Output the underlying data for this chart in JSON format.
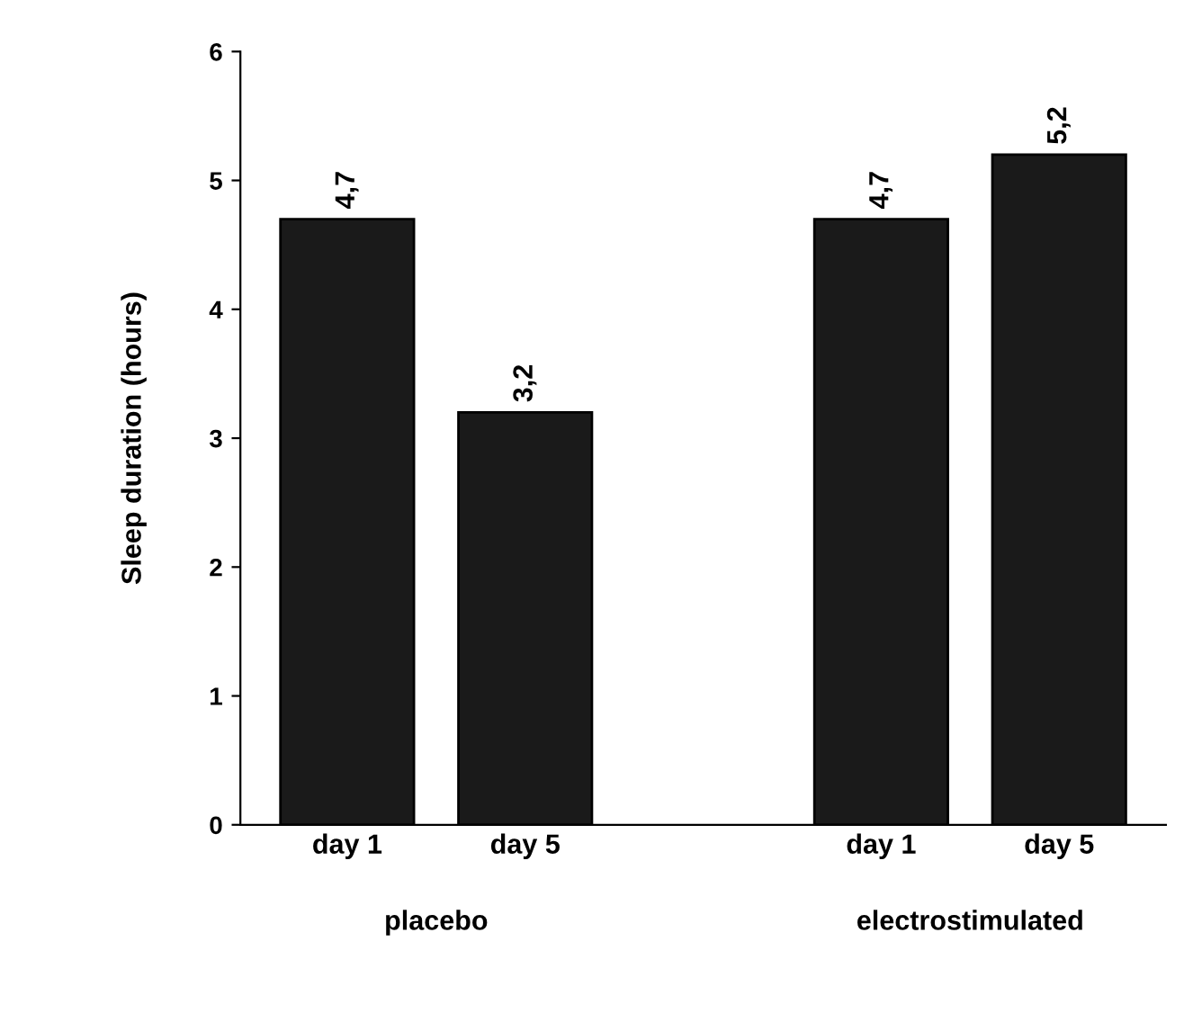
{
  "chart_data": {
    "type": "bar",
    "ylabel": "Sleep duration (hours)",
    "categories": [
      "day 1",
      "day 5",
      null,
      "day 1",
      "day 5"
    ],
    "values": [
      4.7,
      3.2,
      null,
      4.7,
      5.2
    ],
    "value_labels": [
      "4,7",
      "3,2",
      null,
      "4,7",
      "5,2"
    ],
    "color": "#1a1a1a",
    "ylim": [
      0,
      6
    ],
    "yticks": [
      0,
      1,
      2,
      3,
      4,
      5,
      6
    ],
    "grid": false,
    "annotations": [
      "placebo",
      "electrostimulated"
    ]
  }
}
